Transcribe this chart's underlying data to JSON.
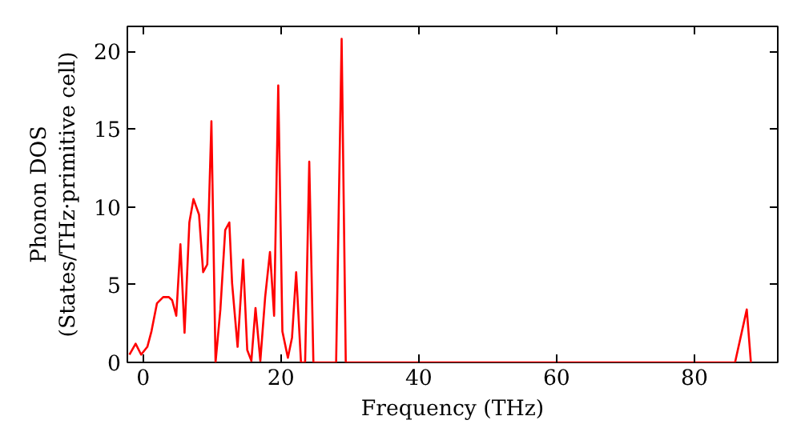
{
  "chart_data": {
    "type": "line",
    "xlabel": "Frequency (THz)",
    "ylabel": "Phonon DOS\n(States/THz·primitive cell)",
    "x": [
      -2.0,
      -1.1,
      -0.3,
      0.6,
      1.2,
      2.0,
      2.9,
      3.7,
      4.2,
      4.8,
      5.4,
      6.0,
      6.7,
      7.3,
      8.1,
      8.7,
      9.3,
      9.9,
      10.5,
      11.2,
      11.9,
      12.5,
      12.9,
      13.7,
      14.5,
      15.1,
      15.7,
      16.3,
      17.0,
      17.7,
      18.4,
      19.0,
      19.6,
      20.2,
      21.0,
      21.6,
      22.2,
      22.9,
      23.5,
      24.1,
      24.7,
      28.0,
      28.8,
      29.4,
      85.9,
      87.6,
      88.2
    ],
    "series": [
      {
        "color": "#ff0000",
        "values": [
          0.5,
          1.2,
          0.5,
          1.0,
          2.0,
          3.8,
          4.2,
          4.2,
          4.0,
          3.0,
          7.6,
          1.9,
          9.0,
          10.5,
          9.5,
          5.8,
          6.3,
          15.5,
          0,
          3.4,
          8.5,
          9.0,
          5.1,
          1.0,
          6.6,
          0.8,
          0.1,
          3.5,
          0.1,
          4.2,
          7.1,
          3.0,
          17.8,
          2.0,
          0.3,
          1.6,
          5.8,
          0,
          0,
          12.9,
          0,
          0,
          20.8,
          0,
          0,
          3.4,
          0
        ]
      }
    ],
    "xlim": [
      -2.3,
      92.1
    ],
    "ylim": [
      0,
      21.6
    ],
    "xticks": [
      0,
      20,
      40,
      60,
      80
    ],
    "yticks": [
      0,
      5,
      10,
      15,
      20
    ],
    "grid": false,
    "marker": "none",
    "line_style": "solid"
  }
}
